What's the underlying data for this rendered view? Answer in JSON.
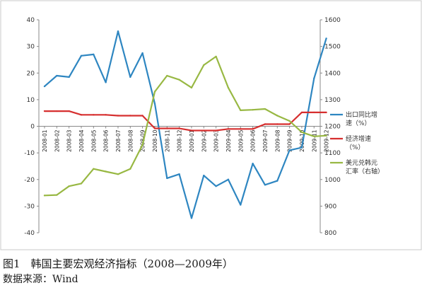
{
  "chart_data": {
    "type": "line",
    "categories": [
      "2008-01",
      "2008-02",
      "2008-03",
      "2008-04",
      "2008-05",
      "2008-06",
      "2008-07",
      "2008-08",
      "2008-09",
      "2008-10",
      "2008-11",
      "2008-12",
      "2009-01",
      "2009-02",
      "2009-03",
      "2009-04",
      "2009-05",
      "2009-06",
      "2009-07",
      "2009-08",
      "2009-09",
      "2009-10",
      "2009-11",
      "2009-12"
    ],
    "series": [
      {
        "name": "出口同比增速（%）",
        "axis": "left",
        "color": "#2e86c1",
        "values": [
          15,
          19,
          18.5,
          26.5,
          27,
          16.5,
          35.7,
          18.5,
          27.5,
          8.5,
          -19.5,
          -18,
          -34.5,
          -18.5,
          -22.5,
          -20,
          -29.5,
          -14,
          -22,
          -20.5,
          -9,
          -8,
          18,
          33
        ]
      },
      {
        "name": "经济增速（%）",
        "axis": "left",
        "color": "#d62f2f",
        "values": [
          5.7,
          5.7,
          5.7,
          4.3,
          4.3,
          4.3,
          4.0,
          4.0,
          4.0,
          -0.8,
          -0.8,
          -0.8,
          -1.6,
          -1.6,
          -1.6,
          -1.0,
          -1.0,
          -1.0,
          0.8,
          0.8,
          0.8,
          5.2,
          5.2,
          5.2
        ]
      },
      {
        "name": "美元兑韩元汇率（右轴）",
        "axis": "right",
        "color": "#98b843",
        "values": [
          940,
          942,
          975,
          985,
          1040,
          1030,
          1020,
          1040,
          1130,
          1330,
          1390,
          1375,
          1345,
          1430,
          1462,
          1345,
          1260,
          1262,
          1265,
          1240,
          1220,
          1178,
          1162,
          1165
        ]
      }
    ],
    "y_left": {
      "min": -40,
      "max": 40,
      "ticks": [
        40,
        30,
        20,
        10,
        0,
        -10,
        -20,
        -30,
        -40
      ]
    },
    "y_right": {
      "min": 800,
      "max": 1600,
      "ticks": [
        1600,
        1500,
        1400,
        1300,
        1200,
        1100,
        1000,
        900,
        800
      ]
    },
    "grid": false,
    "legend": {
      "placement": "right",
      "entries": [
        {
          "lines": [
            "出口同比增",
            "速（%）"
          ],
          "color": "#2e86c1"
        },
        {
          "lines": [
            "经济增速",
            "（%）"
          ],
          "color": "#d62f2f"
        },
        {
          "lines": [
            "美元兑韩元",
            "汇率（右轴）"
          ],
          "color": "#98b843"
        }
      ]
    }
  },
  "caption": {
    "figure": "图1　韩国主要宏观经济指标（2008—2009年）",
    "source": "数据来源：Wind"
  }
}
